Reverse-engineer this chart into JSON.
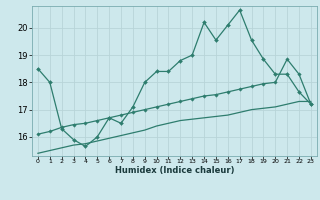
{
  "xlabel": "Humidex (Indice chaleur)",
  "bg_color": "#cde8ec",
  "grid_color": "#b8d4d8",
  "line_color": "#2e7d6e",
  "x_ticks": [
    0,
    1,
    2,
    3,
    4,
    5,
    6,
    7,
    8,
    9,
    10,
    11,
    12,
    13,
    14,
    15,
    16,
    17,
    18,
    19,
    20,
    21,
    22,
    23
  ],
  "y_ticks": [
    16,
    17,
    18,
    19,
    20
  ],
  "xlim": [
    -0.5,
    23.5
  ],
  "ylim": [
    15.3,
    20.8
  ],
  "series1_x": [
    0,
    1,
    2,
    3,
    4,
    5,
    6,
    7,
    8,
    9,
    10,
    11,
    12,
    13,
    14,
    15,
    16,
    17,
    18,
    19,
    20,
    21,
    22,
    23
  ],
  "series1_y": [
    18.5,
    18.0,
    16.3,
    15.9,
    15.65,
    16.0,
    16.7,
    16.5,
    17.1,
    18.0,
    18.4,
    18.4,
    18.8,
    19.0,
    20.2,
    19.55,
    20.1,
    20.65,
    19.55,
    18.85,
    18.3,
    18.3,
    17.65,
    17.2
  ],
  "series2_x": [
    0,
    1,
    2,
    3,
    4,
    5,
    6,
    7,
    8,
    9,
    10,
    11,
    12,
    13,
    14,
    15,
    16,
    17,
    18,
    19,
    20,
    21,
    22,
    23
  ],
  "series2_y": [
    16.1,
    16.2,
    16.35,
    16.45,
    16.5,
    16.6,
    16.7,
    16.8,
    16.9,
    17.0,
    17.1,
    17.2,
    17.3,
    17.4,
    17.5,
    17.55,
    17.65,
    17.75,
    17.85,
    17.95,
    18.0,
    18.85,
    18.3,
    17.2
  ],
  "series3_x": [
    0,
    1,
    2,
    3,
    4,
    5,
    6,
    7,
    8,
    9,
    10,
    11,
    12,
    13,
    14,
    15,
    16,
    17,
    18,
    19,
    20,
    21,
    22,
    23
  ],
  "series3_y": [
    15.4,
    15.5,
    15.6,
    15.7,
    15.75,
    15.85,
    15.95,
    16.05,
    16.15,
    16.25,
    16.4,
    16.5,
    16.6,
    16.65,
    16.7,
    16.75,
    16.8,
    16.9,
    17.0,
    17.05,
    17.1,
    17.2,
    17.3,
    17.3
  ]
}
